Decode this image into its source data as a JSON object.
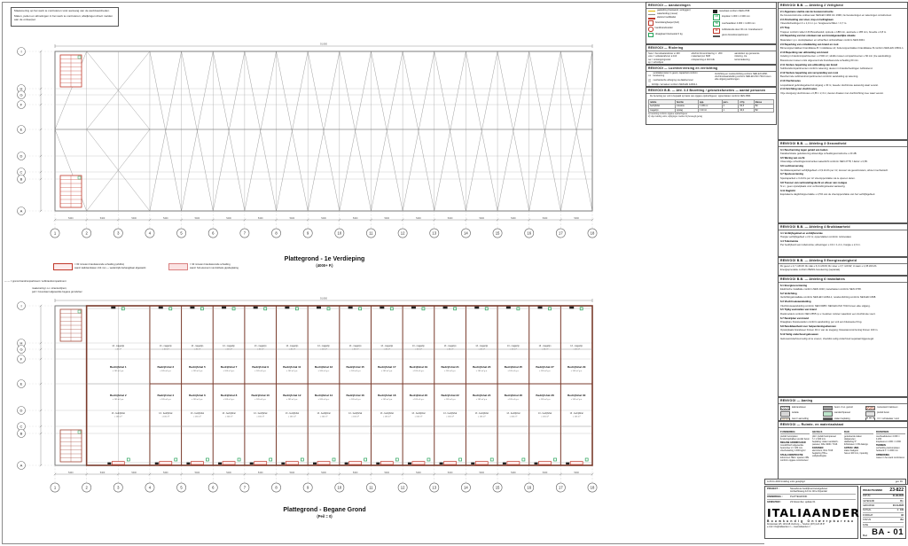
{
  "note_box": {
    "p1": "Maatvoering op het werk te controleren vóór aanvang van de werkzaamheden.",
    "p2": "Maten, peilen en afmetingen in het werk te controleren; afwijkingen direct melden aan de ontwerper."
  },
  "plans": {
    "grid": {
      "cols": [
        "1",
        "2",
        "3",
        "4",
        "5",
        "6",
        "7",
        "8",
        "9",
        "10",
        "11",
        "12",
        "13",
        "14",
        "15",
        "16",
        "17",
        "18"
      ],
      "rows": [
        "I",
        "H",
        "G",
        "F",
        "E",
        "D",
        "C",
        "B",
        "A"
      ]
    },
    "dim_bay": "5400",
    "dim_total": "91.800",
    "first": {
      "caption": "Plattegrond - 1e Verdieping",
      "sub": "(4000+ P.)"
    },
    "ground": {
      "caption": "Plattegrond - Begane Grond",
      "sub": "(Peil = 0)",
      "notes": [
        "maatvoering t.o.v. stramienlijnen;",
        "peil = bovenkant afgewerkte begane grondvloer"
      ],
      "bay_labels": {
        "top_small": "13 - magazijn",
        "top_area": "± 40 m²",
        "sub": "± 165 m² g.o.",
        "bottom_small": "13 - bedrijfshal",
        "bottom_area": "± 165 m²"
      },
      "units": [
        {
          "n": "Bedrijfshal 1",
          "s": "Bedrijfshal 2"
        },
        {
          "n": "Bedrijfshal 3",
          "s": "Bedrijfshal 4"
        },
        {
          "n": "Bedrijfshal 5",
          "s": "Bedrijfshal 6"
        },
        {
          "n": "Bedrijfshal 7",
          "s": "Bedrijfshal 8"
        },
        {
          "n": "Bedrijfshal 9",
          "s": "Bedrijfshal 10"
        },
        {
          "n": "Bedrijfshal 11",
          "s": "Bedrijfshal 12"
        },
        {
          "n": "Bedrijfshal 13",
          "s": "Bedrijfshal 14"
        },
        {
          "n": "Bedrijfshal 15",
          "s": "Bedrijfshal 16"
        },
        {
          "n": "Bedrijfshal 17",
          "s": "Bedrijfshal 18"
        },
        {
          "n": "Bedrijfshal 19",
          "s": "Bedrijfshal 20"
        },
        {
          "n": "Bedrijfshal 21",
          "s": "Bedrijfshal 22"
        },
        {
          "n": "Bedrijfshal 23",
          "s": "Bedrijfshal 24"
        },
        {
          "n": "Bedrijfshal 25",
          "s": "Bedrijfshal 26"
        },
        {
          "n": "Bedrijfshal 27",
          "s": "Bedrijfshal 28"
        },
        {
          "n": "Bedrijfshal 29",
          "s": "Bedrijfshal 30"
        }
      ]
    }
  },
  "fire_legend": {
    "item1": [
      "= 60 minuten brandwerende scheiding (wbdbo)",
      "wand: kalkzandsteen 214 mm — wederzijds behangklaar afgewerkt"
    ],
    "item2": [
      "= 30 minuten brandwerende scheiding",
      "wand: hsb-element met dubbele gipsbeplating"
    ],
    "extra": "— — = grens brandcompartiment / subbrandcompartiment"
  },
  "legend1": {
    "header": "RENVOOI — Aanduidingen",
    "left": [
      {
        "c": "#e6b800",
        "k": "bar",
        "t": "gasleiding (bestaand, verleggen)"
      },
      {
        "c": "#8c8c8c",
        "k": "bar",
        "t": "waterleiding (nieuw)"
      },
      {
        "c": "#c0392b",
        "k": "bar",
        "t": "elektra hoofdkabel"
      },
      {
        "c": "#c0392b",
        "k": "box",
        "t": "brandslanghaspel (bsh)"
      },
      {
        "c": "#c0392b",
        "k": "circle",
        "t": "handbrandmelder"
      },
      {
        "c": "#27a25a",
        "k": "box",
        "t": "draagbaar blustoestel 6 kg"
      }
    ],
    "right": [
      {
        "c": "#222222",
        "k": "meter",
        "t": "meterkast conform NEN 2768"
      },
      {
        "c": "#27a25a",
        "k": "tag",
        "g": "LD",
        "t": "loopdeur 1.000 × 2.300 mm"
      },
      {
        "c": "#27a25a",
        "k": "tag",
        "g": "TD",
        "t": "overheaddeur 4.000 × 4.200 mm"
      },
      {
        "c": "#c0392b",
        "k": "tag",
        "g": "30",
        "t": "zelfsluitende deur 30 min. brandwerend"
      },
      {
        "c": "#555555",
        "k": "bar",
        "t": "grens brandcompartiment"
      }
    ]
  },
  "legend2": {
    "header": "RENVOOI — Riolering",
    "cols": [
      [
        "hwa = hemelwaterafvoer ø 100",
        "vwa = vuilwaterafvoer ø 110",
        "oa = ontstoppingsstuk",
        "sp = schrobput"
      ],
      [
        "afschot binnenriolering 1 : 200",
        "materiaal pvc SN8",
        "ontspanning ø 110 bdk"
      ],
      [
        "aansluiten op gemeente-",
        "riolering, zie",
        "terreintekening"
      ]
    ]
  },
  "legend3": {
    "header": "RENVOOI — Luchtverversing en verlichting",
    "items": [
      {
        "g": "▭",
        "t": "ventilatierooster in gevel, capaciteit conform berekening"
      },
      {
        "g": "◫",
        "t": "mechanische afzuiging via dakdoorvoer"
      },
      {
        "g": "◌",
        "t": "lichtlijn / armatuur conform NEN-EN 12464-1"
      }
    ],
    "note": "Verlichting en noodverlichting conform NEN-EN 1838; vluchtrouteaanduiding conform NEN-EN-ISO 7010 boven elke uitgang aanbrengen."
  },
  "legend4": {
    "header": "RENVOOI B.B. — Afd. 3.3 Bezetting / gebruiksfuncties — aantal personen",
    "intro": "De bezetting per unit is bepaald op basis van opgave opdrachtgever; oppervlakten conform NEN 2580.",
    "headers": [
      "ruimte",
      "functie",
      "opp.",
      "pers.",
      "m²/p",
      "klasse"
    ],
    "rows": [
      [
        "bedrijfshal",
        "industrie",
        "± 165 m²",
        "2",
        "82,5",
        "B2"
      ],
      [
        "magazijn",
        "opslag",
        "± 40 m²",
        "1",
        "40,0",
        "B2"
      ]
    ],
    "footnotes": [
      "1) bezetting conform opgave opdrachtgever",
      "2) vrije indeling units; wijzigingen melden bij bevoegd gezag"
    ]
  },
  "right_blocks": [
    {
      "header": "RENVOOI B.B. — Afdeling 2 Veiligheid",
      "lines": [
        {
          "b": 1,
          "t": "2.1 Algemene sterkte van de bouwconstructie"
        },
        {
          "t": "De bouwconstructie voldoet aan NEN-EN 1990 t/m 1999; zie berekeningen en tekeningen constructeur."
        },
        {
          "b": 1,
          "t": "2.3 Afscheiding van vloer, trap en hellingbaan"
        },
        {
          "t": "Vloerafscheidingen h ≥ 1,0 m t.p.v. hoogteverschillen > 0,7 m."
        },
        {
          "b": 1,
          "t": "2.5 Trap"
        },
        {
          "t": "Trappen conform tabel 2.33 Bouwbesluit; optrede ≤ 188 mm, aantrede ≥ 185 mm, breedte ≥ 0,8 m."
        },
        {
          "b": 1,
          "t": "2.8 Beperking van het ontstaan van een brandgevaarlijke situatie"
        },
        {
          "t": "Materialen t.p.v. stookplaatsen en schachten onbrandbaar conform NEN 6064."
        },
        {
          "b": 1,
          "t": "2.9 Beperking van ontwikkeling van brand en rook"
        },
        {
          "t": "Binnenoppervlakken brandklasse B / rookklasse s2; buitenoppervlakken brandklasse B conform NEN-EN 13501-1."
        },
        {
          "b": 1,
          "t": "2.10 Beperking van uitbreiding van brand"
        },
        {
          "t": "Indeling in brandcompartimenten ≤ 2.500 m²; wbdbo tussen compartimenten ≥ 60 min (zie aanduiding)."
        },
        {
          "t": "Bouwmuren tussen units uitgevoerd als brandwerende scheiding 60 min."
        },
        {
          "b": 1,
          "t": "2.11 Verdere beperking van uitbreiding van brand"
        },
        {
          "t": "Subbrandcompartimenten conform tekening; deuren in brandscheidingen zelfsluitend."
        },
        {
          "b": 1,
          "t": "2.12 Verdere beperking van verspreiding van rook"
        },
        {
          "t": "Beschermde subbrandcompartimenten conform aanduiding op tekening."
        },
        {
          "b": 1,
          "t": "2.13 Vluchtroutes"
        },
        {
          "t": "Loopafstand gebruiksgebied tot uitgang ≤ 30 m; tweede vluchtroute aanwezig waar vereist."
        },
        {
          "b": 1,
          "t": "2.14 Inrichting van vluchtroutes"
        },
        {
          "t": "Vrije doorgang vluchtroutes ≥ 0,85 × 2,3 m; deuren draaien met vluchtrichting mee waar vereist."
        }
      ]
    },
    {
      "header": "RENVOOI B.B. — Afdeling 3 Gezondheid",
      "lines": [
        {
          "b": 1,
          "t": "3.1 Bescherming tegen geluid van buiten"
        },
        {
          "t": "Karakteristieke geluidwering uitwendige scheidingsconstructie ≥ 20 dB."
        },
        {
          "b": 1,
          "t": "3.5 Wering van vocht"
        },
        {
          "t": "Uitwendige scheidingsconstructies waterdicht conform NEN 2778; f-factor ≥ 0,65."
        },
        {
          "b": 1,
          "t": "3.6 Luchtverversing"
        },
        {
          "t": "Ventilatiecapaciteit verblijfsgebied ≥ 0,9 dm³/s per m²; toevoer via gevelroosters, afvoer mechanisch."
        },
        {
          "b": 1,
          "t": "3.7 Spuivoorziening"
        },
        {
          "t": "Spuicapaciteit ≥ 3 dm³/s per m² vloeroppervlakte via te openen delen."
        },
        {
          "b": 1,
          "t": "3.8 Toevoer van verbrandingslucht en afvoer van rookgas"
        },
        {
          "t": "N.v.t.; geen opstelplaats voor verbrandingstoestel aanwezig."
        },
        {
          "b": 1,
          "t": "3.11 Daglicht"
        },
        {
          "t": "Equivalente daglichtoppervlakte ≥ 2,5% van de vloeroppervlakte van het verblijfsgebied."
        }
      ]
    },
    {
      "header": "RENVOOI B.B. — Afdeling 4 Bruikbaarheid",
      "lines": [
        {
          "b": 1,
          "t": "4.1 Verblijfsgebied en verblijfsruimte"
        },
        {
          "t": "Hoogte verblijfsgebied ≥ 2,6 m; oppervlakten conform ruimtestaat."
        },
        {
          "b": 1,
          "t": "4.4 Toiletruimte"
        },
        {
          "t": "Per bedrijfsunit één toiletruimte; afmetingen ≥ 0,9 × 1,2 m, hoogte ≥ 2,3 m."
        }
      ]
    },
    {
      "header": "RENVOOI B.B. — Afdeling 5 Energiezuinigheid",
      "lines": [
        {
          "t": "Rc gevel ≥ 4,7 m²K/W; Rc dak ≥ 6,3 m²K/W; Rc vloer ≥ 3,7 m²K/W; U raam ≤ 1,65 W/m²K."
        },
        {
          "t": "Energieprestatie conform BENG-berekening (separaat)."
        }
      ]
    },
    {
      "header": "RENVOOI B.B. — Afdeling 6 Installaties",
      "lines": [
        {
          "b": 1,
          "t": "6.1 Energievoorziening"
        },
        {
          "t": "Elektrische installatie conform NEN 1010; meterkasten conform NEN 2768."
        },
        {
          "b": 1,
          "t": "6.2 Verlichting"
        },
        {
          "t": "Verlichtingsinstallatie conform NEN-EN 12464-1; noodverlichting conform NEN-EN 1838."
        },
        {
          "b": 1,
          "t": "6.3 Vluchtrouteaanduiding"
        },
        {
          "t": "Vluchtrouteaanduiding conform NEN 6088 / NEN-EN-ISO 7010 boven elke uitgang."
        },
        {
          "b": 1,
          "t": "6.5 Tijdig vaststellen van brand"
        },
        {
          "t": "Rookmelders conform NEN 2555 t.p.v. besloten ruimten waardoor een vluchtroute voert."
        },
        {
          "b": 1,
          "t": "6.7 Bestrijden van brand"
        },
        {
          "t": "Draagbare blustoestellen conform aanduiding; per unit één blustoestel 6 kg."
        },
        {
          "b": 1,
          "t": "6.8 Bereikbaarheid voor hulpverleningsdiensten"
        },
        {
          "t": "Opstelplaats brandweer binnen 40 m van de toegang; bluswatervoorziening binnen 100 m."
        },
        {
          "b": 1,
          "t": "6.12 Veilig onderhoud gebouwen"
        },
        {
          "t": "Gebouwonderhoud veilig uit te voeren; checklist veilig onderhoud separaat bijgevoegd."
        }
      ]
    }
  ],
  "aanleg": {
    "header": "RENVOOI — Aanleg",
    "items": [
      {
        "s": "sw-hatch1",
        "t": "kalkzandsteen"
      },
      {
        "s": "sw-solid-gray",
        "t": "beton i.h.w. gestort"
      },
      {
        "s": "sw-hatch2",
        "t": "metselwerk baksteen"
      },
      {
        "s": "sw-dots",
        "t": "isolatie"
      },
      {
        "s": "sw-green",
        "t": "sandwichpaneel"
      },
      {
        "s": "sw-light",
        "t": "prefab beton"
      },
      {
        "s": "sw-hatch3",
        "t": "zand / aanvulling"
      },
      {
        "s": "sw-dark",
        "t": "stalen beplating"
      },
      {
        "s": "sw-io",
        "t": "I O = schakelaar / wcd"
      }
    ]
  },
  "materiaalstaat": {
    "header": "RENVOOI — Ruimte- en materiaalstaat",
    "cols": [
      {
        "h": "FUNDERING",
        "lines": [
          {
            "t": "prefab betonpalen"
          },
          {
            "t": "funderingsbalken prefab beton"
          },
          {
            "b": 1,
            "t": "BEGANE GRONDVLOER"
          },
          {
            "t": "monolithisch afgewerkte"
          },
          {
            "t": "betonvloer d = 180 mm"
          },
          {
            "t": "vloerbelasting 1.000 kg/m²"
          },
          {
            "b": 1,
            "t": "STAALCONSTRUCTIE"
          },
          {
            "t": "kolommen HEA / spanten IPE"
          },
          {
            "t": "conform opgave constructeur"
          }
        ]
      },
      {
        "h": "GEVELS",
        "lines": [
          {
            "t": "plint: prefab betonpaneel"
          },
          {
            "t": "h = 2.400 mm"
          },
          {
            "t": "beplating: stalen sandwich-"
          },
          {
            "t": "panelen, RAL 9006 / 7016"
          },
          {
            "b": 1,
            "t": "KOZIJNEN"
          },
          {
            "t": "aluminium, RAL 7016"
          },
          {
            "t": "beglazing HR++ veiligheidsglas"
          }
        ]
      },
      {
        "h": "DAK",
        "lines": [
          {
            "t": "geïsoleerde stalen dakpanelen"
          },
          {
            "t": "dakhelling 5°"
          },
          {
            "t": "lichtstraten ± 3% dakopp."
          },
          {
            "b": 1,
            "t": "GOTEN / HWA"
          },
          {
            "t": "stalen bakgoot"
          },
          {
            "t": "hwa ø 100 mm, inpandig"
          }
        ]
      },
      {
        "h": "DIVERSEN",
        "lines": [
          {
            "t": "overheaddeuren 4.000 × 4.200"
          },
          {
            "t": "loopdeuren 1.000 × 2.300"
          },
          {
            "b": 1,
            "t": "TERREIN"
          },
          {
            "t": "verharding stelconplaten"
          },
          {
            "t": "hekwerk h = 2.000 mm"
          },
          {
            "b": 1,
            "t": "OPMERKING"
          },
          {
            "t": "maten in het werk controleren"
          }
        ]
      }
    ]
  },
  "title_block": {
    "rev_left": "A   23-11-2023   indeling units gewijzigd",
    "rev_right": "get. R.I.",
    "project_label": "PROJECT :",
    "project_value_1": "Nieuwbouw bedrijfsverzamelgebouw",
    "project_value_2": "Ambachtsweg 12 t/m 40 te Nijverdal",
    "onderdeel_label": "ONDERDEEL :",
    "onderdeel_value": "PLATTEGROND",
    "gewijzigd_label": "GEWIJZIGD :",
    "gewijzigd_value": "23 November, update 01",
    "logo": "ITALIAANDER",
    "logo_sub": "Bouwkundig Ontwerpbureau",
    "address_1": "Dorpsstraat 145, 1234 AB Voorburg — Telefoon (070) 123 45 67",
    "address_2": "e-mail: info@italiaander.nl — www.italiaander.nl",
    "projectnummer_label": "PROJECTNUMMER",
    "projectnummer_value": "23-822",
    "fields": [
      [
        "DATUM",
        "01-08-2023"
      ],
      [
        "GETEKEND",
        "R.I."
      ],
      [
        "GEWIJZIGD",
        "23-11-2023"
      ],
      [
        "SCHAAL",
        "1 : 100"
      ],
      [
        "FORMAAT",
        "A0"
      ],
      [
        "STATUS",
        "BA"
      ],
      [
        "FASE",
        "-"
      ]
    ],
    "blad_label": "Blad",
    "blad_value": "BA - 01"
  }
}
